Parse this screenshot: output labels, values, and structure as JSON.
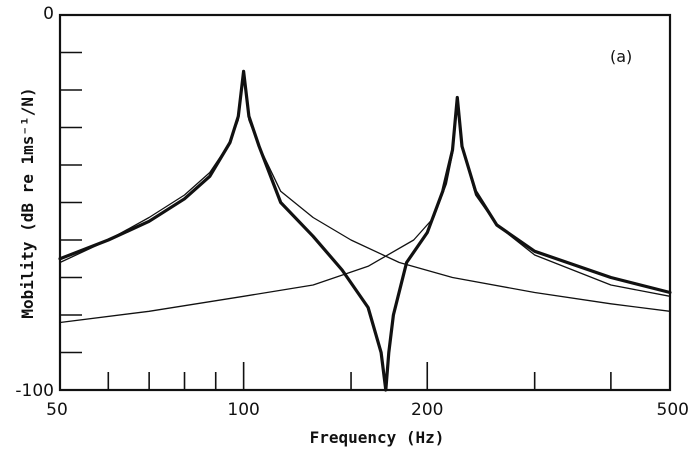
{
  "chart_data": {
    "type": "line",
    "xlabel": "Frequency (Hz)",
    "ylabel": "Mobility (dB re 1ms⁻¹/N)",
    "panel_label": "(a)",
    "x_scale": "log",
    "xlim": [
      50,
      500
    ],
    "ylim": [
      -100,
      0
    ],
    "x_tick_labels": [
      {
        "value": 50,
        "label": "50"
      },
      {
        "value": 100,
        "label": "100"
      },
      {
        "value": 200,
        "label": "200"
      },
      {
        "value": 500,
        "label": "500"
      }
    ],
    "x_minor_ticks": [
      60,
      70,
      80,
      90,
      150,
      300,
      400
    ],
    "y_tick_labels": [
      {
        "value": 0,
        "label": "0"
      },
      {
        "value": -100,
        "label": "-100"
      }
    ],
    "y_minor_ticks": [
      -10,
      -20,
      -30,
      -40,
      -50,
      -60,
      -70,
      -80,
      -90
    ],
    "grid": false,
    "series": [
      {
        "style": "thin",
        "x": [
          50,
          60,
          70,
          80,
          88,
          95,
          98,
          100,
          102,
          106,
          115,
          130,
          150,
          180,
          220,
          300,
          400,
          500
        ],
        "y": [
          -66,
          -60,
          -54,
          -48,
          -42,
          -34,
          -28,
          -16,
          -28,
          -35,
          -47,
          -54,
          -60,
          -66,
          -70,
          -74,
          -77,
          -79
        ]
      },
      {
        "style": "thin",
        "x": [
          50,
          70,
          100,
          130,
          160,
          190,
          205,
          215,
          220,
          224,
          228,
          240,
          260,
          300,
          400,
          500
        ],
        "y": [
          -82,
          -79,
          -75,
          -72,
          -67,
          -60,
          -54,
          -45,
          -37,
          -22,
          -35,
          -48,
          -56,
          -64,
          -72,
          -75
        ]
      },
      {
        "style": "thick",
        "x": [
          50,
          60,
          70,
          80,
          88,
          95,
          98,
          100,
          102,
          106,
          115,
          130,
          145,
          160,
          168,
          171,
          173,
          176,
          185,
          200,
          212,
          220,
          224,
          228,
          240,
          260,
          300,
          400,
          500
        ],
        "y": [
          -65,
          -60,
          -55,
          -49,
          -43,
          -34,
          -27,
          -15,
          -27,
          -35,
          -50,
          -59,
          -68,
          -78,
          -90,
          -100,
          -90,
          -80,
          -66,
          -58,
          -47,
          -36,
          -22,
          -35,
          -47,
          -56,
          -63,
          -70,
          -74
        ]
      }
    ]
  }
}
